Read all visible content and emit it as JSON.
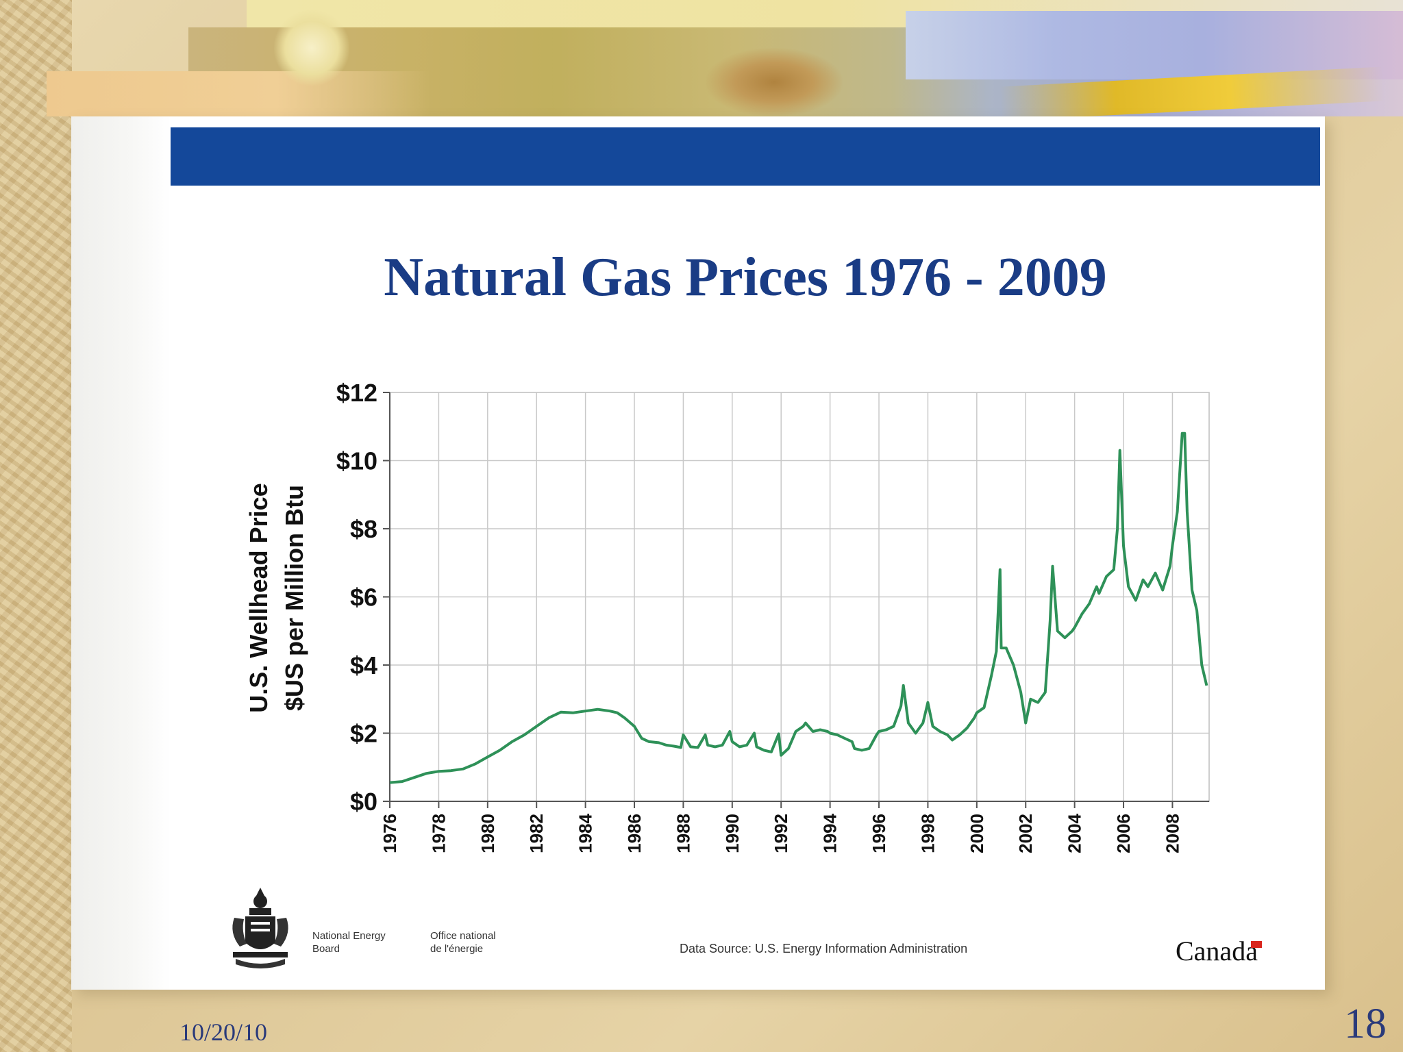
{
  "slide": {
    "footer_date": "10/20/10",
    "slide_number": "18",
    "accent_color": "#14489a",
    "title_color": "#1a3c85",
    "line_color": "#2e9158"
  },
  "chart_data": {
    "type": "line",
    "title": "Natural Gas Prices 1976 - 2009",
    "ylabel_line1": "U.S. Wellhead Price",
    "ylabel_line2": "$US per Million Btu",
    "xlabel": "",
    "ylim": [
      0,
      12
    ],
    "xlim": [
      1976,
      2009.5
    ],
    "y_ticks": [
      0,
      2,
      4,
      6,
      8,
      10,
      12
    ],
    "y_tick_labels": [
      "$0",
      "$2",
      "$4",
      "$6",
      "$8",
      "$10",
      "$12"
    ],
    "x_ticks": [
      1976,
      1978,
      1980,
      1982,
      1984,
      1986,
      1988,
      1990,
      1992,
      1994,
      1996,
      1998,
      2000,
      2002,
      2004,
      2006,
      2008
    ],
    "x_tick_labels": [
      "1976",
      "1978",
      "1980",
      "1982",
      "1984",
      "1986",
      "1988",
      "1990",
      "1992",
      "1994",
      "1996",
      "1998",
      "2000",
      "2002",
      "2004",
      "2006",
      "2008"
    ],
    "grid": true,
    "series": [
      {
        "name": "U.S. Wellhead Price",
        "x": [
          1976.0,
          1976.5,
          1977.0,
          1977.5,
          1978.0,
          1978.5,
          1979.0,
          1979.5,
          1980.0,
          1980.5,
          1981.0,
          1981.5,
          1982.0,
          1982.5,
          1983.0,
          1983.5,
          1984.0,
          1984.5,
          1985.0,
          1985.3,
          1985.6,
          1986.0,
          1986.3,
          1986.6,
          1987.0,
          1987.3,
          1987.6,
          1987.9,
          1988.0,
          1988.3,
          1988.6,
          1988.9,
          1989.0,
          1989.3,
          1989.6,
          1989.9,
          1990.0,
          1990.3,
          1990.6,
          1990.9,
          1991.0,
          1991.3,
          1991.6,
          1991.9,
          1992.0,
          1992.3,
          1992.6,
          1992.9,
          1993.0,
          1993.3,
          1993.6,
          1993.9,
          1994.0,
          1994.3,
          1994.6,
          1994.9,
          1995.0,
          1995.3,
          1995.6,
          1995.9,
          1996.0,
          1996.3,
          1996.6,
          1996.9,
          1997.0,
          1997.2,
          1997.5,
          1997.8,
          1998.0,
          1998.2,
          1998.5,
          1998.8,
          1999.0,
          1999.3,
          1999.6,
          1999.9,
          2000.0,
          2000.3,
          2000.6,
          2000.8,
          2000.95,
          2001.0,
          2001.2,
          2001.5,
          2001.8,
          2002.0,
          2002.2,
          2002.5,
          2002.8,
          2003.0,
          2003.1,
          2003.3,
          2003.6,
          2003.9,
          2004.0,
          2004.3,
          2004.6,
          2004.9,
          2005.0,
          2005.3,
          2005.6,
          2005.75,
          2005.85,
          2006.0,
          2006.2,
          2006.5,
          2006.8,
          2007.0,
          2007.3,
          2007.6,
          2007.9,
          2008.0,
          2008.2,
          2008.4,
          2008.5,
          2008.6,
          2008.8,
          2009.0,
          2009.2,
          2009.4
        ],
        "values": [
          0.55,
          0.58,
          0.7,
          0.82,
          0.88,
          0.9,
          0.95,
          1.1,
          1.3,
          1.5,
          1.75,
          1.95,
          2.2,
          2.45,
          2.62,
          2.6,
          2.65,
          2.7,
          2.65,
          2.6,
          2.45,
          2.2,
          1.85,
          1.75,
          1.72,
          1.65,
          1.62,
          1.58,
          1.95,
          1.6,
          1.58,
          1.95,
          1.65,
          1.6,
          1.65,
          2.05,
          1.75,
          1.6,
          1.65,
          2.0,
          1.6,
          1.5,
          1.45,
          1.98,
          1.35,
          1.55,
          2.05,
          2.2,
          2.3,
          2.05,
          2.1,
          2.05,
          2.0,
          1.95,
          1.85,
          1.75,
          1.55,
          1.5,
          1.55,
          1.95,
          2.05,
          2.1,
          2.2,
          2.8,
          3.4,
          2.3,
          2.0,
          2.3,
          2.9,
          2.2,
          2.05,
          1.95,
          1.8,
          1.95,
          2.15,
          2.45,
          2.6,
          2.75,
          3.7,
          4.4,
          6.8,
          4.5,
          4.5,
          4.0,
          3.2,
          2.3,
          3.0,
          2.9,
          3.2,
          5.3,
          6.9,
          5.0,
          4.8,
          5.0,
          5.1,
          5.5,
          5.8,
          6.3,
          6.1,
          6.6,
          6.8,
          8.0,
          10.3,
          7.5,
          6.3,
          5.9,
          6.5,
          6.3,
          6.7,
          6.2,
          6.9,
          7.5,
          8.5,
          10.8,
          10.8,
          8.5,
          6.2,
          5.6,
          4.0,
          3.4
        ]
      }
    ],
    "source_note": "Data Source: U.S. Energy Information Administration"
  },
  "branding": {
    "org_en_line1": "National Energy",
    "org_en_line2": "Board",
    "org_fr_line1": "Office national",
    "org_fr_line2": "de l'énergie",
    "wordmark": "Canada",
    "crest_icon": "coat-of-arms-icon"
  }
}
